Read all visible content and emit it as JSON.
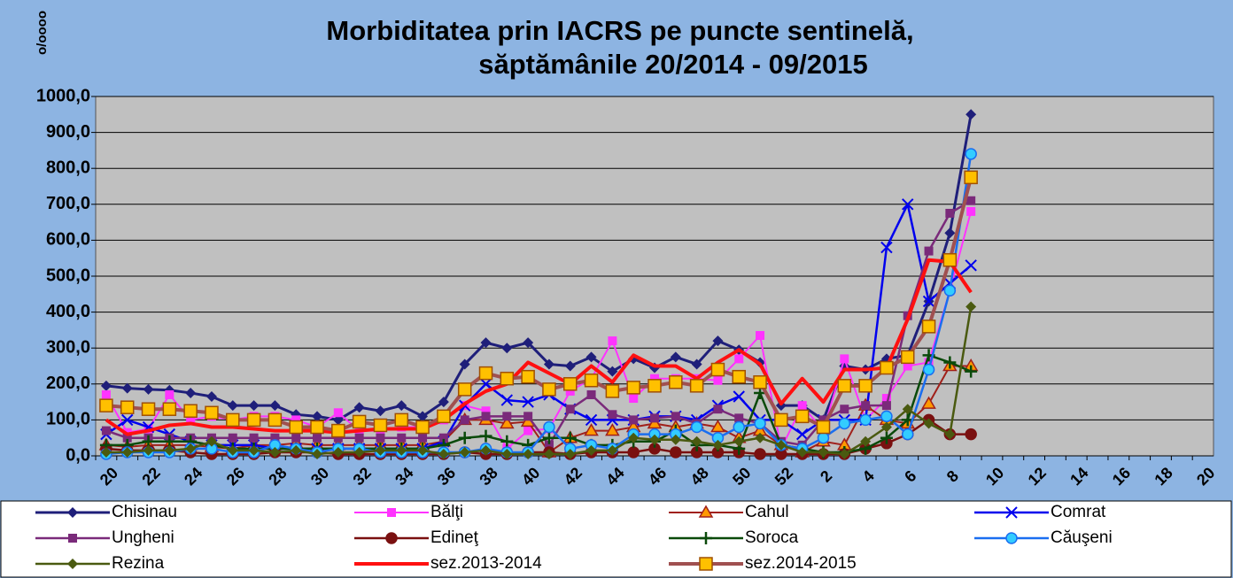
{
  "chart_data": {
    "type": "line",
    "title": "Morbiditatea prin IACRS pe puncte sentinelă,",
    "subtitle": "săptămânile 20/2014 - 09/2015",
    "y_label": "o/oooo",
    "categories": [
      "20",
      null,
      "22",
      null,
      "24",
      null,
      "26",
      null,
      "28",
      null,
      "30",
      null,
      "32",
      null,
      "34",
      null,
      "36",
      null,
      "38",
      null,
      "40",
      null,
      "42",
      null,
      "44",
      null,
      "46",
      null,
      "48",
      null,
      "50",
      null,
      "52",
      null,
      "2",
      null,
      "4",
      null,
      "6",
      null,
      "8",
      null,
      "10",
      null,
      "12",
      null,
      "14",
      null,
      "16",
      null,
      "18",
      null,
      "20"
    ],
    "ylim": [
      0,
      1000
    ],
    "yticks": [
      {
        "value": 0,
        "label": "0,0"
      },
      {
        "value": 100,
        "label": "100,0"
      },
      {
        "value": 200,
        "label": "200,0"
      },
      {
        "value": 300,
        "label": "300,0"
      },
      {
        "value": 400,
        "label": "400,0"
      },
      {
        "value": 500,
        "label": "500,0"
      },
      {
        "value": 600,
        "label": "600,0"
      },
      {
        "value": 700,
        "label": "700,0"
      },
      {
        "value": 800,
        "label": "800,0"
      },
      {
        "value": 900,
        "label": "900,0"
      },
      {
        "value": 1000,
        "label": "1000,0"
      }
    ],
    "grid": true,
    "legend": "bottom",
    "series": [
      {
        "name": "Chisinau",
        "color": "#1f1f7a",
        "marker": "diamond",
        "width": 3,
        "values": [
          195,
          188,
          185,
          183,
          175,
          165,
          140,
          140,
          140,
          115,
          110,
          100,
          135,
          125,
          140,
          110,
          150,
          255,
          315,
          300,
          315,
          255,
          250,
          275,
          235,
          270,
          245,
          275,
          255,
          320,
          295,
          260,
          140,
          140,
          100,
          250,
          240,
          270,
          280,
          430,
          620,
          950,
          null,
          null,
          null,
          null,
          null,
          null,
          null,
          null,
          null,
          null,
          null
        ]
      },
      {
        "name": "Bălţi",
        "color": "#ff33ff",
        "marker": "square",
        "width": 2,
        "values": [
          170,
          65,
          75,
          170,
          100,
          110,
          100,
          110,
          110,
          100,
          80,
          120,
          70,
          70,
          80,
          80,
          100,
          140,
          125,
          20,
          70,
          75,
          180,
          215,
          320,
          160,
          215,
          215,
          215,
          210,
          270,
          335,
          20,
          140,
          70,
          270,
          100,
          160,
          250,
          260,
          460,
          680,
          null,
          null,
          null,
          null,
          null,
          null,
          null,
          null,
          null,
          null,
          null
        ]
      },
      {
        "name": "Cahul",
        "color": "#a0201a",
        "marker": "triangle",
        "width": 2,
        "values": [
          30,
          25,
          30,
          30,
          30,
          25,
          20,
          30,
          30,
          35,
          30,
          30,
          30,
          30,
          30,
          30,
          40,
          100,
          100,
          90,
          95,
          10,
          50,
          70,
          70,
          80,
          90,
          80,
          90,
          80,
          50,
          70,
          30,
          10,
          40,
          30,
          140,
          100,
          90,
          145,
          250,
          250,
          null,
          null,
          null,
          null,
          null,
          null,
          null,
          null,
          null,
          null,
          null
        ]
      },
      {
        "name": "Comrat",
        "color": "#0000ee",
        "marker": "x",
        "width": 2.5,
        "values": [
          60,
          100,
          80,
          60,
          40,
          30,
          30,
          30,
          20,
          20,
          20,
          20,
          20,
          20,
          20,
          20,
          40,
          140,
          200,
          155,
          150,
          170,
          130,
          100,
          100,
          100,
          110,
          110,
          100,
          140,
          165,
          100,
          100,
          60,
          100,
          100,
          100,
          580,
          700,
          430,
          480,
          530,
          null,
          null,
          null,
          null,
          null,
          null,
          null,
          null,
          null,
          null,
          null
        ]
      },
      {
        "name": "Ungheni",
        "color": "#7a2a7a",
        "marker": "square",
        "width": 2.5,
        "values": [
          70,
          50,
          50,
          50,
          50,
          50,
          50,
          50,
          50,
          50,
          50,
          50,
          50,
          50,
          50,
          50,
          50,
          100,
          110,
          110,
          110,
          30,
          130,
          170,
          115,
          100,
          105,
          110,
          90,
          130,
          105,
          90,
          40,
          30,
          100,
          130,
          140,
          140,
          390,
          570,
          675,
          710,
          null,
          null,
          null,
          null,
          null,
          null,
          null,
          null,
          null,
          null,
          null
        ]
      },
      {
        "name": "Edineţ",
        "color": "#7a1010",
        "marker": "circle",
        "width": 2.5,
        "values": [
          20,
          15,
          15,
          15,
          10,
          5,
          5,
          5,
          10,
          10,
          10,
          5,
          5,
          5,
          5,
          5,
          5,
          10,
          5,
          5,
          10,
          10,
          5,
          10,
          10,
          10,
          20,
          10,
          10,
          10,
          10,
          5,
          5,
          5,
          5,
          5,
          20,
          35,
          60,
          100,
          60,
          60,
          null,
          null,
          null,
          null,
          null,
          null,
          null,
          null,
          null,
          null,
          null
        ]
      },
      {
        "name": "Soroca",
        "color": "#0a4a0a",
        "marker": "plus",
        "width": 2.5,
        "values": [
          30,
          30,
          40,
          40,
          40,
          30,
          20,
          20,
          20,
          20,
          20,
          20,
          20,
          20,
          20,
          20,
          30,
          50,
          55,
          40,
          30,
          50,
          50,
          30,
          30,
          40,
          40,
          70,
          30,
          30,
          20,
          175,
          30,
          20,
          10,
          10,
          20,
          50,
          100,
          280,
          260,
          235,
          null,
          null,
          null,
          null,
          null,
          null,
          null,
          null,
          null,
          null,
          null
        ]
      },
      {
        "name": "Căuşeni",
        "color": "#1a6ef0",
        "marker": "circle",
        "width": 2.5,
        "values": [
          5,
          10,
          10,
          10,
          20,
          20,
          10,
          10,
          30,
          20,
          10,
          20,
          20,
          10,
          10,
          10,
          10,
          10,
          20,
          10,
          10,
          80,
          20,
          30,
          20,
          60,
          60,
          60,
          80,
          50,
          80,
          90,
          30,
          20,
          50,
          90,
          100,
          110,
          60,
          240,
          460,
          840,
          null,
          null,
          null,
          null,
          null,
          null,
          null,
          null,
          null,
          null,
          null
        ]
      },
      {
        "name": "Rezina",
        "color": "#4a5a10",
        "marker": "diamond",
        "width": 2.5,
        "values": [
          10,
          10,
          15,
          15,
          20,
          40,
          15,
          15,
          10,
          15,
          5,
          10,
          10,
          15,
          15,
          15,
          5,
          10,
          15,
          5,
          5,
          5,
          5,
          15,
          15,
          50,
          45,
          45,
          40,
          30,
          40,
          50,
          30,
          10,
          10,
          5,
          40,
          80,
          130,
          90,
          60,
          415,
          null,
          null,
          null,
          null,
          null,
          null,
          null,
          null,
          null,
          null,
          null
        ]
      },
      {
        "name": "sez.2013-2014",
        "color": "#ff1010",
        "marker": "none",
        "width": 4,
        "values": [
          100,
          60,
          70,
          85,
          90,
          80,
          80,
          75,
          70,
          70,
          70,
          65,
          70,
          75,
          75,
          75,
          100,
          145,
          180,
          200,
          260,
          230,
          200,
          250,
          205,
          280,
          250,
          250,
          215,
          260,
          295,
          255,
          145,
          215,
          150,
          240,
          240,
          245,
          380,
          545,
          540,
          455,
          null,
          null,
          null,
          null,
          null,
          null,
          null,
          null,
          null,
          null,
          null
        ]
      },
      {
        "name": "sez.2014-2015",
        "color": "#a05050",
        "marker": "square-big",
        "width": 4,
        "values": [
          140,
          135,
          130,
          130,
          125,
          120,
          100,
          100,
          100,
          80,
          80,
          70,
          95,
          85,
          100,
          80,
          110,
          185,
          230,
          215,
          220,
          185,
          200,
          210,
          180,
          190,
          195,
          205,
          195,
          240,
          220,
          205,
          100,
          110,
          80,
          195,
          195,
          245,
          275,
          360,
          545,
          775,
          null,
          null,
          null,
          null,
          null,
          null,
          null,
          null,
          null,
          null,
          null
        ]
      }
    ]
  }
}
